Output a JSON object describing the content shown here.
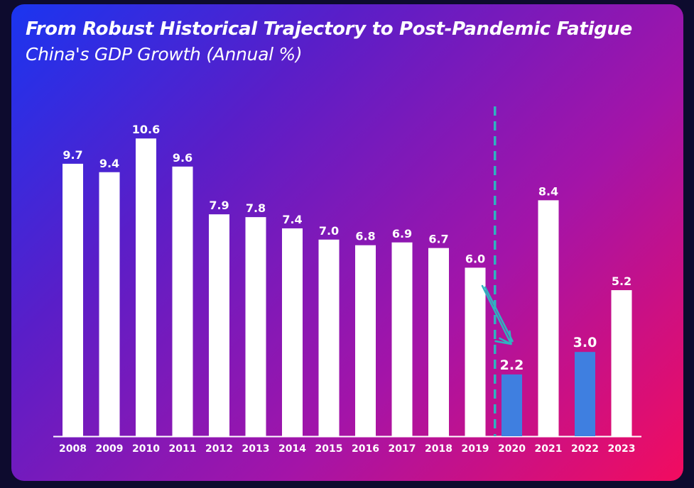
{
  "colors": {
    "bar_default": "#ffffff",
    "bar_highlight": "#3f7fe0",
    "marker": "#2fb3c0",
    "text": "#ffffff"
  },
  "chart_data": {
    "type": "bar",
    "title": "From Robust Historical Trajectory to Post-Pandemic Fatigue",
    "subtitle": "China's GDP Growth (Annual %)",
    "xlabel": "",
    "ylabel": "",
    "categories": [
      "2008",
      "2009",
      "2010",
      "2011",
      "2012",
      "2013",
      "2014",
      "2015",
      "2016",
      "2017",
      "2018",
      "2019",
      "2020",
      "2021",
      "2022",
      "2023"
    ],
    "values": [
      9.7,
      9.4,
      10.6,
      9.6,
      7.9,
      7.8,
      7.4,
      7.0,
      6.8,
      6.9,
      6.7,
      6.0,
      2.2,
      8.4,
      3.0,
      5.2
    ],
    "value_labels": [
      "9.7",
      "9.4",
      "10.6",
      "9.6",
      "7.9",
      "7.8",
      "7.4",
      "7.0",
      "6.8",
      "6.9",
      "6.7",
      "6.0",
      "2.2",
      "8.4",
      "3.0",
      "5.2"
    ],
    "highlighted": [
      "2020",
      "2022"
    ],
    "ylim": [
      0,
      12
    ],
    "grid": false,
    "legend": "none",
    "annotations": [
      {
        "type": "vertical-dashed-line",
        "between": [
          "2019",
          "2020"
        ]
      },
      {
        "type": "arrow",
        "from": "2019",
        "to": "2020"
      }
    ]
  }
}
